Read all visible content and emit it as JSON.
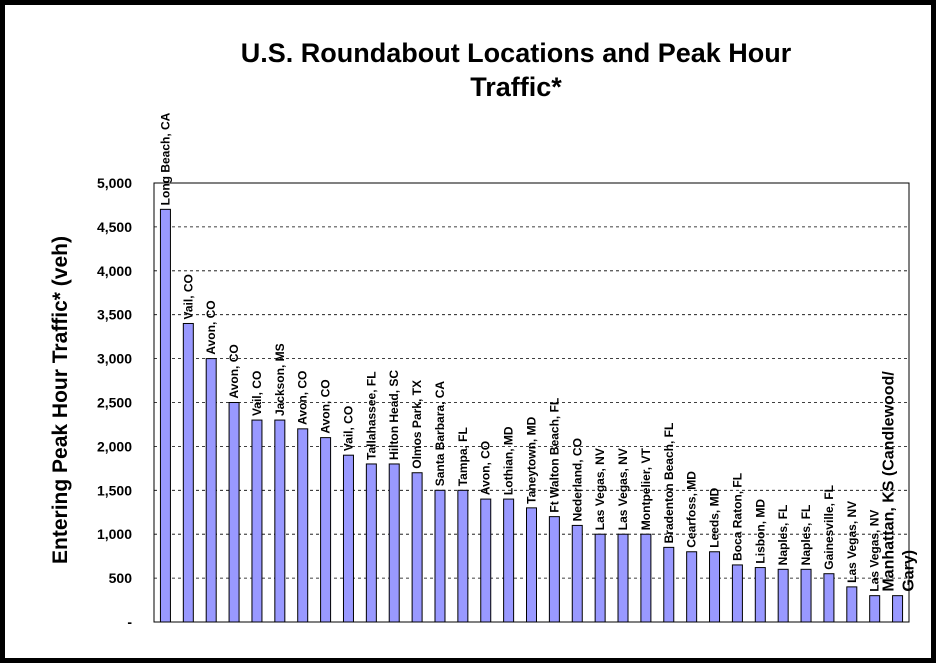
{
  "chart_data": {
    "type": "bar",
    "title_line1": "U.S. Roundabout Locations and Peak Hour",
    "title_line2": "Traffic*",
    "xlabel": "",
    "ylabel": "Entering Peak Hour Traffic* (veh)",
    "ylim": [
      0,
      5000
    ],
    "grid": true,
    "y_ticks": [
      {
        "value": 0,
        "label": "-"
      },
      {
        "value": 500,
        "label": "500"
      },
      {
        "value": 1000,
        "label": "1,000"
      },
      {
        "value": 1500,
        "label": "1,500"
      },
      {
        "value": 2000,
        "label": "2,000"
      },
      {
        "value": 2500,
        "label": "2,500"
      },
      {
        "value": 3000,
        "label": "3,000"
      },
      {
        "value": 3500,
        "label": "3,500"
      },
      {
        "value": 4000,
        "label": "4,000"
      },
      {
        "value": 4500,
        "label": "4,500"
      },
      {
        "value": 5000,
        "label": "5,000"
      }
    ],
    "categories": [
      "Long Beach, CA",
      "Vail, CO",
      "Avon, CO",
      "Avon, CO",
      "Vail, CO",
      "Jackson, MS",
      "Avon, CO",
      "Avon, CO",
      "Vail, CO",
      "Tallahassee, FL",
      "Hilton Head, SC",
      "Olmos Park, TX",
      "Santa Barbara, CA",
      "Tampa, FL",
      "Avon, CO",
      "Lothian, MD",
      "Taneytown, MD",
      "Ft Walton Beach, FL",
      "Nederland, CO",
      "Las Vegas, NV",
      "Las Vegas, NV",
      "Montpelier, VT",
      "Bradenton Beach, FL",
      "Cearfoss, MD",
      "Leeds, MD",
      "Boca Raton, FL",
      "Lisbon, MD",
      "Naples, FL",
      "Naples, FL",
      "Gainesville, FL",
      "Las Vegas, NV",
      "Las Vegas, NV",
      "Manhattan, KS (Candlewood/ Gary)"
    ],
    "values": [
      4700,
      3400,
      3000,
      2500,
      2300,
      2300,
      2200,
      2100,
      1900,
      1800,
      1800,
      1700,
      1500,
      1500,
      1400,
      1400,
      1300,
      1200,
      1100,
      1000,
      1000,
      1000,
      850,
      800,
      800,
      650,
      620,
      600,
      600,
      550,
      400,
      300,
      300
    ],
    "last_label_lines": [
      "Manhattan, KS (Candlewood/",
      "Gary)"
    ],
    "bar_color": "#9999ff",
    "background": "#ffffff",
    "frame_color": "#000000"
  }
}
